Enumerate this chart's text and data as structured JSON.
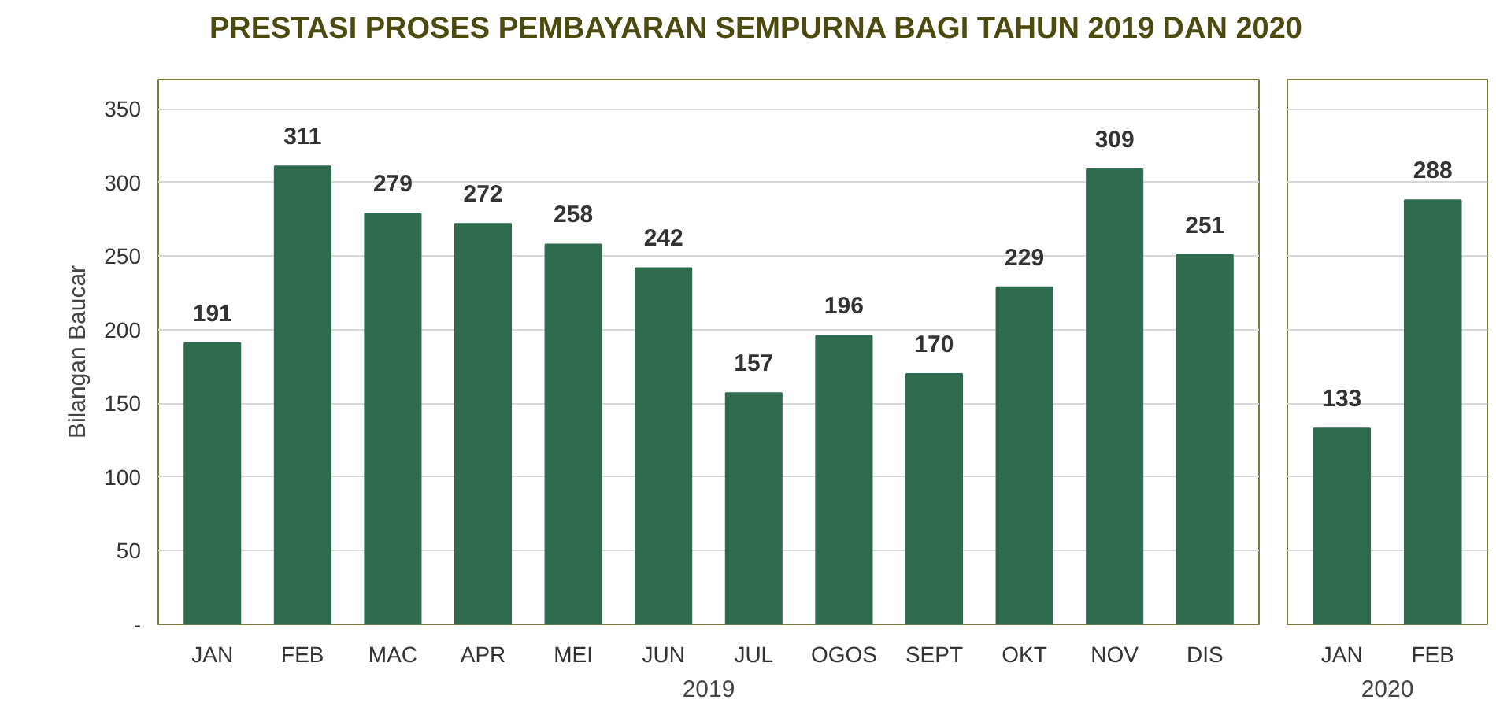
{
  "chart_data": [
    {
      "type": "bar",
      "title": "PRESTASI PROSES PEMBAYARAN SEMPURNA BAGI TAHUN 2019 DAN 2020",
      "ylabel": "Bilangan Baucar",
      "xlabel": "2019",
      "categories": [
        "JAN",
        "FEB",
        "MAC",
        "APR",
        "MEI",
        "JUN",
        "JUL",
        "OGOS",
        "SEPT",
        "OKT",
        "NOV",
        "DIS"
      ],
      "values": [
        191,
        311,
        279,
        272,
        258,
        242,
        157,
        196,
        170,
        229,
        309,
        251
      ],
      "color": "#2f6b4e",
      "ylim": [
        0,
        370
      ],
      "yticks": [
        {
          "value": 0,
          "label": "-"
        },
        50,
        100,
        150,
        200,
        250,
        300,
        350
      ],
      "grid": "y",
      "data_labels": true
    },
    {
      "type": "bar",
      "xlabel": "2020",
      "categories": [
        "JAN",
        "FEB"
      ],
      "values": [
        133,
        288
      ],
      "color": "#2f6b4e",
      "ylim": [
        0,
        370
      ],
      "yticks": [
        0,
        50,
        100,
        150,
        200,
        250,
        300,
        350
      ],
      "grid": "y",
      "data_labels": true,
      "tick_labels": "x"
    }
  ]
}
